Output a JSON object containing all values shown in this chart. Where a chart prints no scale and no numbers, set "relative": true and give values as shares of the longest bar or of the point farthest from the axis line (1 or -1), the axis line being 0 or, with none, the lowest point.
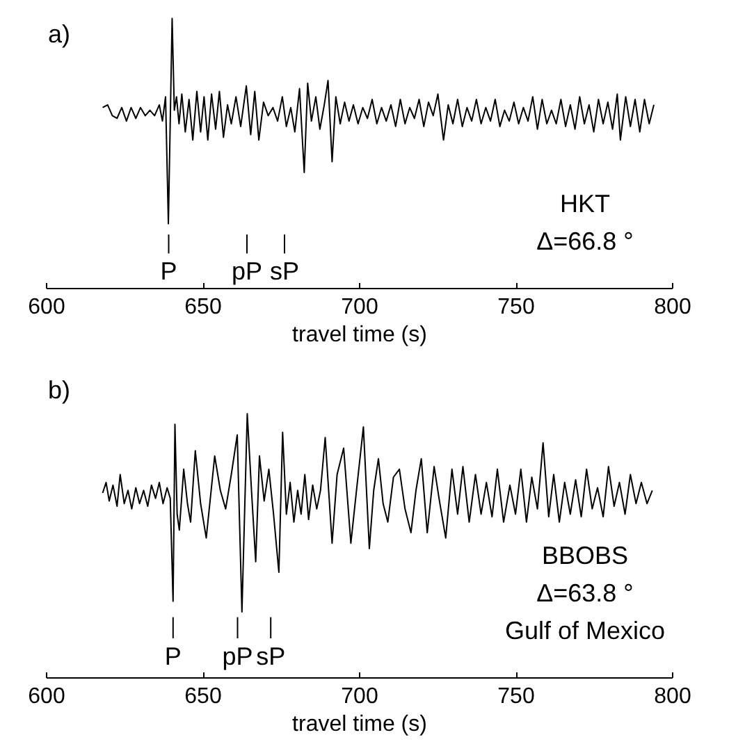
{
  "chart_data": [
    {
      "type": "line",
      "relative": true,
      "color": "#000000",
      "xlabel": "travel time (s)",
      "xlim": [
        600,
        800
      ],
      "xticks": [
        600,
        650,
        700,
        750,
        800
      ],
      "grid": false,
      "line_style": "solid",
      "x": [
        617.9,
        619.5,
        621,
        622.5,
        624,
        625.5,
        627,
        628.5,
        630,
        631.5,
        633,
        634.5,
        636,
        637,
        638,
        638.9,
        640.1,
        640.8,
        641.5,
        642.3,
        643.2,
        644.3,
        645.5,
        646.7,
        648,
        649.2,
        650.3,
        651.5,
        652.7,
        654,
        655.2,
        656.5,
        657.8,
        659,
        660.5,
        662,
        663.8,
        665.2,
        666.5,
        667.8,
        669.3,
        670.8,
        672.3,
        673.8,
        675.3,
        676.6,
        678,
        679.3,
        680.8,
        682.3,
        683.4,
        684.6,
        686,
        687.3,
        688.7,
        689.9,
        691.2,
        692.4,
        693.8,
        695.2,
        696.6,
        698,
        699.5,
        701,
        702.5,
        704,
        705.5,
        707,
        708.5,
        710,
        711.5,
        713,
        714.5,
        716,
        717.5,
        719,
        720.5,
        722,
        723.5,
        725,
        726.8,
        728.3,
        729.8,
        731.3,
        732.8,
        734.3,
        735.8,
        737.3,
        738.8,
        740.3,
        741.8,
        743.3,
        744.8,
        746.3,
        747.8,
        749.3,
        750.8,
        752.3,
        753.8,
        755.3,
        756.8,
        758.3,
        759.8,
        761.3,
        762.8,
        764.3,
        765.8,
        767.3,
        768.8,
        770.3,
        771.8,
        773.3,
        774.8,
        776.3,
        777.8,
        779.3,
        780.8,
        782.3,
        783.3,
        785,
        786.5,
        788,
        789.5,
        791,
        792.5,
        794
      ],
      "values": [
        0.67,
        0.68,
        0.64,
        0.63,
        0.67,
        0.62,
        0.67,
        0.63,
        0.67,
        0.64,
        0.66,
        0.64,
        0.68,
        0.62,
        0.71,
        0.24,
        1.0,
        0.66,
        0.71,
        0.61,
        0.72,
        0.58,
        0.7,
        0.55,
        0.73,
        0.58,
        0.71,
        0.55,
        0.72,
        0.59,
        0.73,
        0.56,
        0.68,
        0.61,
        0.71,
        0.6,
        0.75,
        0.57,
        0.73,
        0.55,
        0.69,
        0.64,
        0.67,
        0.62,
        0.71,
        0.6,
        0.67,
        0.58,
        0.74,
        0.43,
        0.76,
        0.62,
        0.71,
        0.59,
        0.68,
        0.77,
        0.47,
        0.71,
        0.61,
        0.69,
        0.62,
        0.68,
        0.61,
        0.67,
        0.63,
        0.7,
        0.61,
        0.67,
        0.62,
        0.68,
        0.6,
        0.7,
        0.61,
        0.67,
        0.63,
        0.7,
        0.6,
        0.69,
        0.64,
        0.72,
        0.55,
        0.68,
        0.61,
        0.7,
        0.6,
        0.67,
        0.62,
        0.7,
        0.61,
        0.67,
        0.62,
        0.7,
        0.6,
        0.66,
        0.62,
        0.69,
        0.61,
        0.67,
        0.62,
        0.71,
        0.59,
        0.7,
        0.61,
        0.66,
        0.61,
        0.7,
        0.6,
        0.68,
        0.59,
        0.71,
        0.61,
        0.68,
        0.58,
        0.7,
        0.61,
        0.69,
        0.59,
        0.72,
        0.55,
        0.71,
        0.6,
        0.7,
        0.58,
        0.7,
        0.61,
        0.68
      ],
      "ref_lines": [
        {
          "axis": "x",
          "value": 639,
          "label": "P"
        },
        {
          "axis": "x",
          "value": 664,
          "label": "pP"
        },
        {
          "axis": "x",
          "value": 676,
          "label": "sP"
        }
      ],
      "annotations": [
        "a)",
        "HKT",
        "Δ=66.8 °"
      ]
    },
    {
      "type": "line",
      "relative": true,
      "color": "#000000",
      "xlabel": "travel time (s)",
      "xlim": [
        600,
        800
      ],
      "xticks": [
        600,
        650,
        700,
        750,
        800
      ],
      "grid": false,
      "line_style": "solid",
      "x": [
        617.9,
        619,
        620,
        621.2,
        622.5,
        623.5,
        624.8,
        626,
        627.2,
        628.5,
        629.7,
        631,
        632.3,
        633.5,
        634.8,
        636,
        637.2,
        638.5,
        639.5,
        640.4,
        641,
        641.7,
        642.4,
        643.8,
        645,
        646,
        647.5,
        649.2,
        651,
        653.7,
        655.5,
        657.2,
        659,
        660.9,
        662.4,
        664.1,
        665.5,
        666.8,
        668,
        669.5,
        671,
        672.5,
        674.2,
        675.4,
        676.6,
        677.8,
        679,
        680.2,
        681.3,
        682.5,
        683.7,
        685,
        686.3,
        687.5,
        689,
        691.2,
        692.8,
        694.9,
        697.2,
        699,
        701.2,
        703.1,
        704.5,
        706,
        707.5,
        709,
        710.8,
        712.7,
        714.5,
        716.4,
        718,
        719.7,
        721.6,
        723.8,
        725.5,
        727.5,
        729.5,
        731.3,
        733,
        735,
        737,
        738.8,
        740.5,
        742.3,
        744,
        746,
        748,
        749.8,
        751.5,
        753.3,
        755,
        756.8,
        758.6,
        760.4,
        762,
        763.8,
        765.5,
        767.3,
        769,
        770.8,
        772.5,
        774.3,
        776,
        777.8,
        779.5,
        781.3,
        783,
        784.8,
        786.5,
        788.3,
        790,
        791.8,
        793.5
      ],
      "values": [
        0.7,
        0.74,
        0.67,
        0.73,
        0.65,
        0.77,
        0.66,
        0.71,
        0.64,
        0.72,
        0.66,
        0.71,
        0.65,
        0.73,
        0.68,
        0.74,
        0.66,
        0.72,
        0.68,
        0.29,
        0.96,
        0.62,
        0.56,
        0.79,
        0.66,
        0.59,
        0.86,
        0.66,
        0.53,
        0.84,
        0.71,
        0.64,
        0.77,
        0.92,
        0.25,
        1.0,
        0.7,
        0.44,
        0.84,
        0.67,
        0.79,
        0.62,
        0.4,
        0.93,
        0.62,
        0.74,
        0.59,
        0.71,
        0.62,
        0.77,
        0.6,
        0.73,
        0.64,
        0.71,
        0.91,
        0.51,
        0.77,
        0.87,
        0.51,
        0.71,
        0.95,
        0.49,
        0.71,
        0.83,
        0.66,
        0.59,
        0.76,
        0.79,
        0.64,
        0.55,
        0.71,
        0.83,
        0.55,
        0.8,
        0.67,
        0.53,
        0.79,
        0.62,
        0.8,
        0.59,
        0.77,
        0.62,
        0.74,
        0.61,
        0.79,
        0.59,
        0.73,
        0.62,
        0.79,
        0.59,
        0.76,
        0.64,
        0.89,
        0.61,
        0.77,
        0.59,
        0.74,
        0.62,
        0.75,
        0.61,
        0.79,
        0.64,
        0.72,
        0.61,
        0.8,
        0.65,
        0.74,
        0.62,
        0.77,
        0.66,
        0.74,
        0.66,
        0.71
      ],
      "ref_lines": [
        {
          "axis": "x",
          "value": 640.4,
          "label": "P"
        },
        {
          "axis": "x",
          "value": 661,
          "label": "pP"
        },
        {
          "axis": "x",
          "value": 671.6,
          "label": "sP"
        }
      ],
      "annotations": [
        "b)",
        "BBOBS",
        "Δ=63.8 °",
        "Gulf of Mexico"
      ]
    }
  ]
}
